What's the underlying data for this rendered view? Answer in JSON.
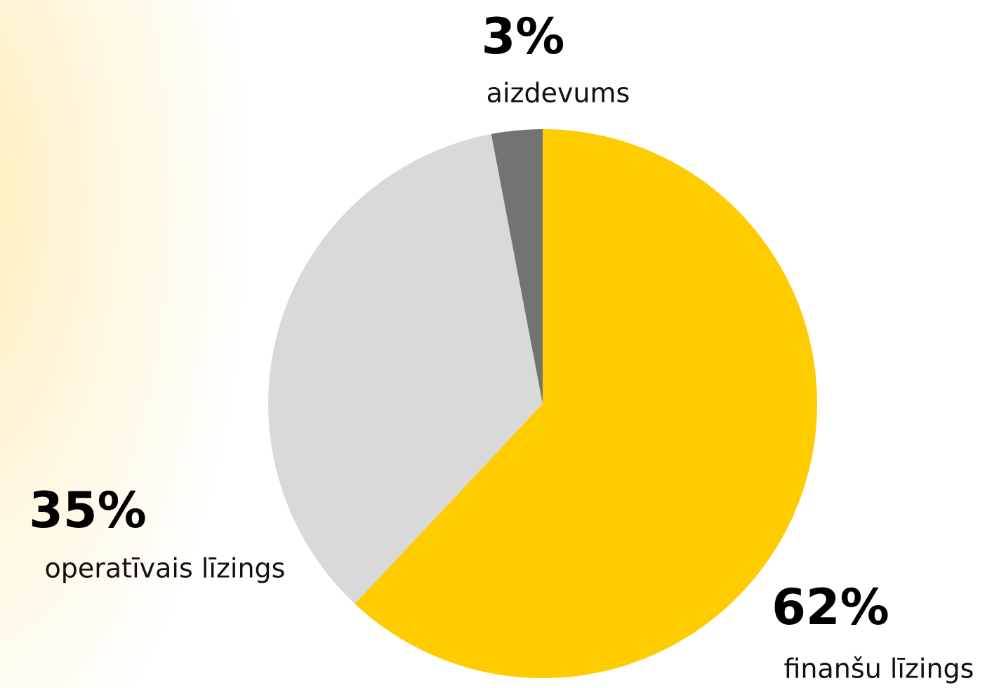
{
  "chart_data": {
    "type": "pie",
    "categories": [
      "finanšu līzings",
      "operatīvais līzings",
      "aizdevums"
    ],
    "values": [
      62,
      35,
      3
    ],
    "value_labels": [
      "62%",
      "35%",
      "3%"
    ],
    "colors": [
      "#ffcc00",
      "#d9d9d9",
      "#737373"
    ]
  }
}
